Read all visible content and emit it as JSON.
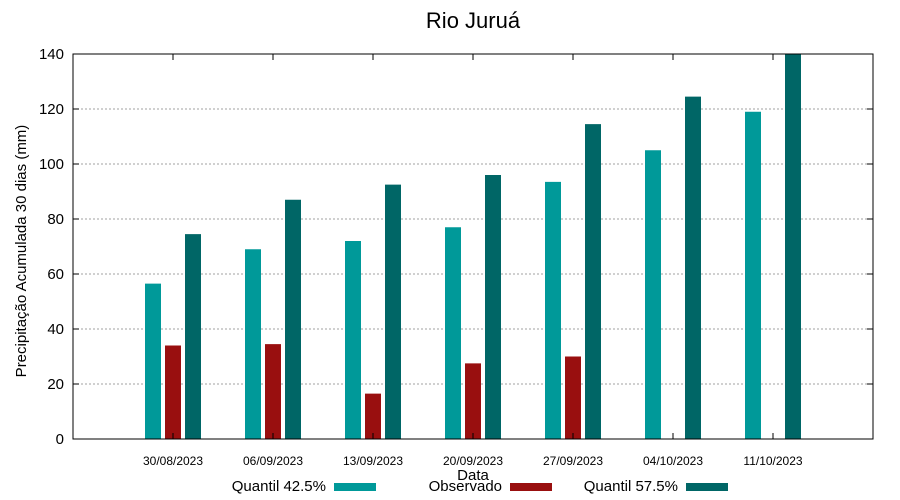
{
  "chart_data": {
    "type": "bar",
    "title": "Rio Juruá",
    "xlabel": "Data",
    "ylabel": "Precipitação Acumulada 30 dias (mm)",
    "ylim": [
      0,
      140
    ],
    "yticks": [
      0,
      20,
      40,
      60,
      80,
      100,
      120,
      140
    ],
    "grid": true,
    "legend_position": "bottom",
    "categories": [
      "30/08/2023",
      "06/09/2023",
      "13/09/2023",
      "20/09/2023",
      "27/09/2023",
      "04/10/2023",
      "11/10/2023"
    ],
    "series": [
      {
        "name": "Quantil 42.5%",
        "color": "#009999",
        "values": [
          56.5,
          69,
          72,
          77,
          93.5,
          105,
          119
        ]
      },
      {
        "name": "Observado",
        "color": "#990f0f",
        "values": [
          34,
          34.5,
          16.5,
          27.5,
          30,
          null,
          null
        ]
      },
      {
        "name": "Quantil 57.5%",
        "color": "#006666",
        "values": [
          74.5,
          87,
          92.5,
          96,
          114.5,
          124.5,
          140
        ]
      }
    ]
  }
}
